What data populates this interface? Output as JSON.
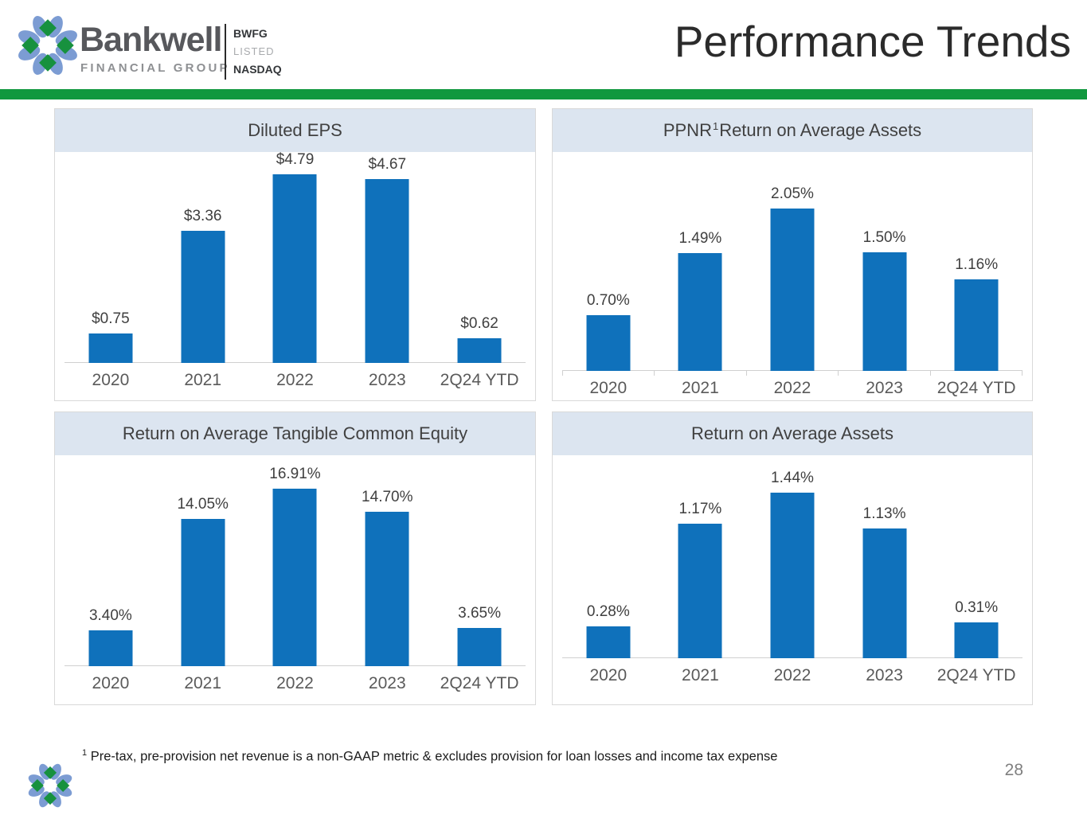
{
  "slide": {
    "title": "Performance Trends",
    "page_number": "28",
    "footnote_superscript": "1",
    "footnote_text": "Pre-tax, pre-provision net revenue is a non-GAAP metric & excludes provision for loan losses and income tax expense",
    "colors": {
      "accent_green": "#10983E",
      "bar_blue": "#0F71BB",
      "header_band": "#DCE5F0",
      "petal_blue": "#7C9CD3",
      "diamond_green": "#17913E"
    }
  },
  "logo": {
    "name": "Bankwell",
    "subtitle": "FINANCIAL GROUP",
    "ticker": "BWFG",
    "listed": "LISTED",
    "exchange": "NASDAQ"
  },
  "chart_data": [
    {
      "type": "bar",
      "title": "Diluted EPS",
      "title_parts": {
        "pre": "Diluted EPS",
        "sup": "",
        "post": ""
      },
      "categories": [
        "2020",
        "2021",
        "2022",
        "2023",
        "2Q24 YTD"
      ],
      "values": [
        0.75,
        3.36,
        4.79,
        4.67,
        0.62
      ],
      "labels": [
        "$0.75",
        "$3.36",
        "$4.79",
        "$4.67",
        "$0.62"
      ],
      "xlabel": "",
      "ylabel": "",
      "ylim": [
        0,
        5.0
      ],
      "grid": false,
      "legend": "none",
      "axis_ticks": false
    },
    {
      "type": "bar",
      "title": "PPNR Return on Average Assets",
      "title_parts": {
        "pre": "PPNR",
        "sup": "1",
        "post": "Return on Average Assets"
      },
      "categories": [
        "2020",
        "2021",
        "2022",
        "2023",
        "2Q24 YTD"
      ],
      "values": [
        0.7,
        1.49,
        2.05,
        1.5,
        1.16
      ],
      "labels": [
        "0.70%",
        "1.49%",
        "2.05%",
        "1.50%",
        "1.16%"
      ],
      "xlabel": "",
      "ylabel": "",
      "ylim": [
        0,
        2.2
      ],
      "grid": false,
      "legend": "none",
      "axis_ticks": true
    },
    {
      "type": "bar",
      "title": "Return on Average Tangible Common Equity",
      "title_parts": {
        "pre": "Return on Average Tangible Common Equity",
        "sup": "",
        "post": ""
      },
      "categories": [
        "2020",
        "2021",
        "2022",
        "2023",
        "2Q24 YTD"
      ],
      "values": [
        3.4,
        14.05,
        16.91,
        14.7,
        3.65
      ],
      "labels": [
        "3.40%",
        "14.05%",
        "16.91%",
        "14.70%",
        "3.65%"
      ],
      "xlabel": "",
      "ylabel": "",
      "ylim": [
        0,
        18
      ],
      "grid": false,
      "legend": "none",
      "axis_ticks": false
    },
    {
      "type": "bar",
      "title": "Return on Average Assets",
      "title_parts": {
        "pre": "Return on Average Assets",
        "sup": "",
        "post": ""
      },
      "categories": [
        "2020",
        "2021",
        "2022",
        "2023",
        "2Q24 YTD"
      ],
      "values": [
        0.28,
        1.17,
        1.44,
        1.13,
        0.31
      ],
      "labels": [
        "0.28%",
        "1.17%",
        "1.44%",
        "1.13%",
        "0.31%"
      ],
      "xlabel": "",
      "ylabel": "",
      "ylim": [
        0,
        1.6
      ],
      "grid": false,
      "legend": "none",
      "axis_ticks": false
    }
  ]
}
